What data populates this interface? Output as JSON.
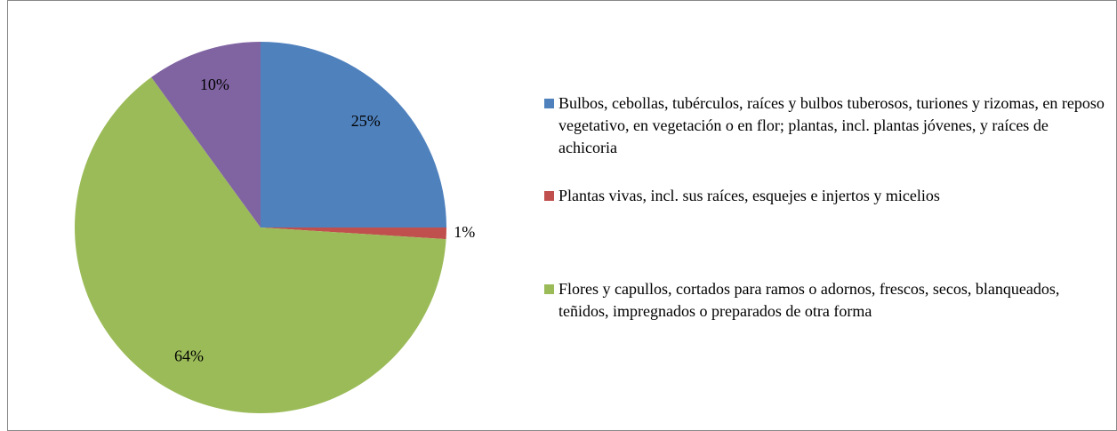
{
  "chart_data": {
    "type": "pie",
    "categories": [
      "Bulbos, cebollas, tubérculos, raíces y bulbos tuberosos, turiones y rizomas, en reposo vegetativo, en vegetación o en flor; plantas, incl. plantas jóvenes, y raíces de achicoria",
      "Plantas vivas, incl. sus raíces, esquejes e injertos y micelios",
      "Flores y capullos, cortados para ramos o adornos, frescos, secos, blanqueados, teñidos, impregnados o preparados de otra forma",
      null
    ],
    "values": [
      25,
      1,
      64,
      10
    ],
    "value_labels": [
      "25%",
      "1%",
      "64%",
      "10%"
    ],
    "colors": [
      "#4f81bd",
      "#c0504d",
      "#9bbb59",
      "#8064a2"
    ],
    "legend": "right"
  }
}
